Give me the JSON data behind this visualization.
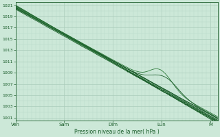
{
  "xlabel": "Pression niveau de la mer( hPa )",
  "bg_color": "#cce8d8",
  "grid_color_major": "#aaccbb",
  "grid_color_minor": "#b8d8c8",
  "line_color_dark": "#1a5c2a",
  "line_color_mid": "#2d7a3a",
  "ylim": [
    1000.5,
    1021.5
  ],
  "ytick_values": [
    1001,
    1003,
    1005,
    1007,
    1009,
    1011,
    1013,
    1015,
    1017,
    1019,
    1021
  ],
  "day_labels": [
    "Ven",
    "Sam",
    "Dim",
    "Lun",
    "M"
  ],
  "day_positions": [
    0,
    1,
    2,
    3,
    4
  ],
  "total_days": 4.15,
  "n_points": 200
}
